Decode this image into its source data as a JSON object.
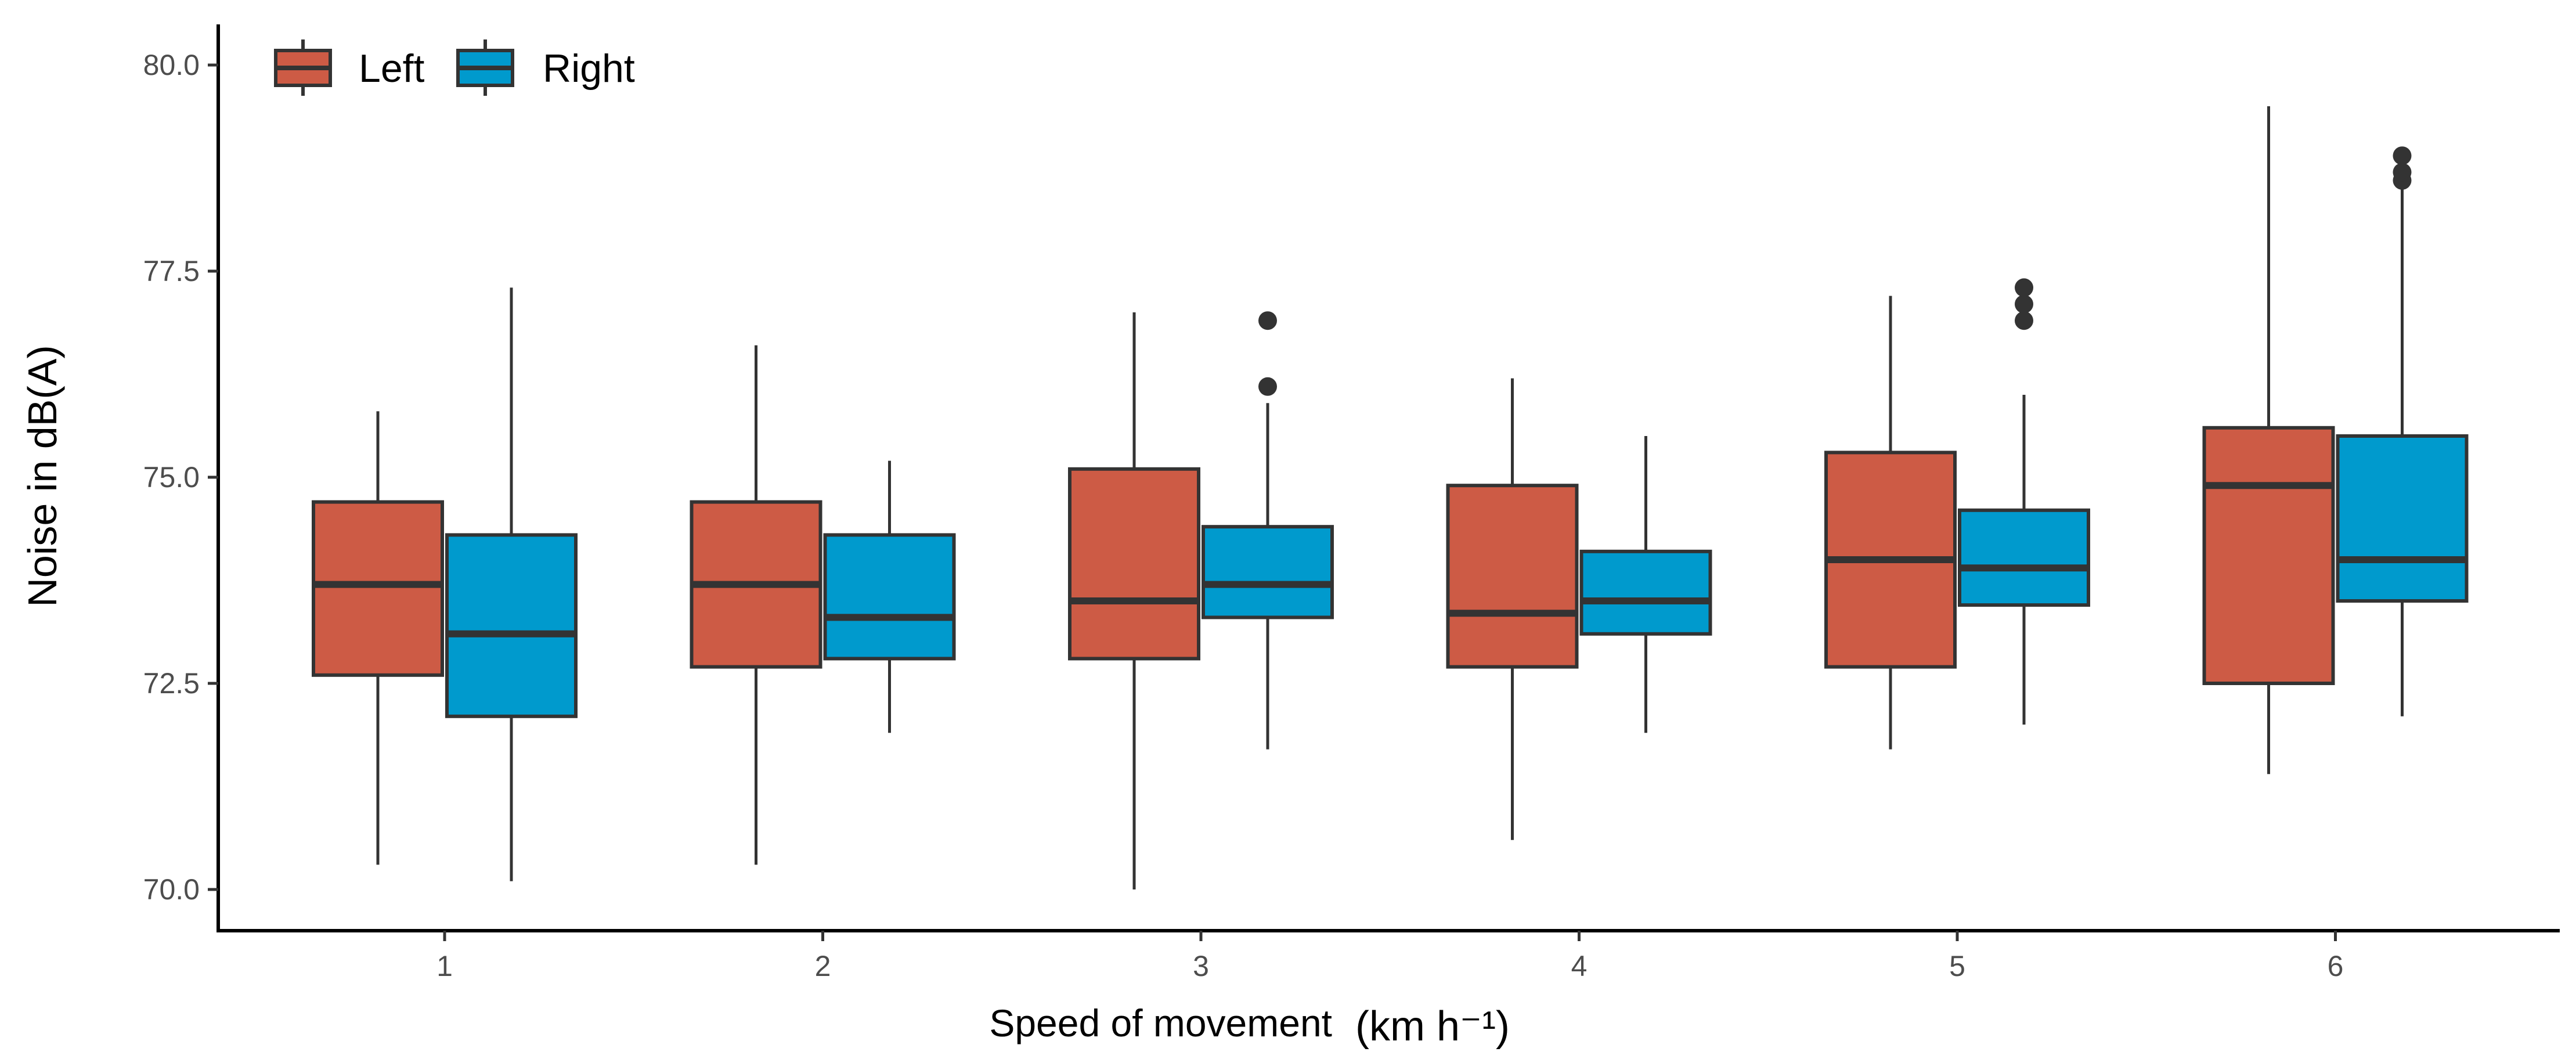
{
  "colors": {
    "left": "#cd5b45",
    "right": "#009acd",
    "stroke": "#333333",
    "axis": "#000000",
    "tick_text": "#4d4d4d",
    "label_text": "#000000"
  },
  "legend": {
    "placement": "top-left",
    "items": [
      {
        "key": "left",
        "label": "Left"
      },
      {
        "key": "right",
        "label": "Right"
      }
    ]
  },
  "chart_data": {
    "type": "boxplot",
    "title": "",
    "xlabel_main": "Speed of movement",
    "xlabel_unit": "(km h⁻¹)",
    "ylabel": "Noise in dB(A)",
    "ylim": [
      69.5,
      80.5
    ],
    "yticks": [
      70.0,
      72.5,
      75.0,
      77.5,
      80.0
    ],
    "ytick_labels": [
      "70.0",
      "72.5",
      "75.0",
      "77.5",
      "80.0"
    ],
    "categories": [
      "1",
      "2",
      "3",
      "4",
      "5",
      "6"
    ],
    "grid": false,
    "series": [
      {
        "name": "Left",
        "key": "left",
        "boxes": [
          {
            "lower_whisker": 70.3,
            "q1": 72.6,
            "median": 73.7,
            "q3": 74.7,
            "upper_whisker": 75.8,
            "outliers": []
          },
          {
            "lower_whisker": 70.3,
            "q1": 72.7,
            "median": 73.7,
            "q3": 74.7,
            "upper_whisker": 76.6,
            "outliers": []
          },
          {
            "lower_whisker": 70.0,
            "q1": 72.8,
            "median": 73.5,
            "q3": 75.1,
            "upper_whisker": 77.0,
            "outliers": []
          },
          {
            "lower_whisker": 70.6,
            "q1": 72.7,
            "median": 73.35,
            "q3": 74.9,
            "upper_whisker": 76.2,
            "outliers": []
          },
          {
            "lower_whisker": 71.7,
            "q1": 72.7,
            "median": 74.0,
            "q3": 75.3,
            "upper_whisker": 77.2,
            "outliers": []
          },
          {
            "lower_whisker": 71.4,
            "q1": 72.5,
            "median": 74.9,
            "q3": 75.6,
            "upper_whisker": 79.5,
            "outliers": []
          }
        ]
      },
      {
        "name": "Right",
        "key": "right",
        "boxes": [
          {
            "lower_whisker": 70.1,
            "q1": 72.1,
            "median": 73.1,
            "q3": 74.3,
            "upper_whisker": 77.3,
            "outliers": []
          },
          {
            "lower_whisker": 71.9,
            "q1": 72.8,
            "median": 73.3,
            "q3": 74.3,
            "upper_whisker": 75.2,
            "outliers": []
          },
          {
            "lower_whisker": 71.7,
            "q1": 73.3,
            "median": 73.7,
            "q3": 74.4,
            "upper_whisker": 75.9,
            "outliers": [
              76.1,
              76.9
            ]
          },
          {
            "lower_whisker": 71.9,
            "q1": 73.1,
            "median": 73.5,
            "q3": 74.1,
            "upper_whisker": 75.5,
            "outliers": []
          },
          {
            "lower_whisker": 72.0,
            "q1": 73.45,
            "median": 73.9,
            "q3": 74.6,
            "upper_whisker": 76.0,
            "outliers": [
              76.9,
              77.1,
              77.3
            ]
          },
          {
            "lower_whisker": 72.1,
            "q1": 73.5,
            "median": 74.0,
            "q3": 75.5,
            "upper_whisker": 78.5,
            "outliers": [
              78.6,
              78.7,
              78.9
            ]
          }
        ]
      }
    ]
  }
}
